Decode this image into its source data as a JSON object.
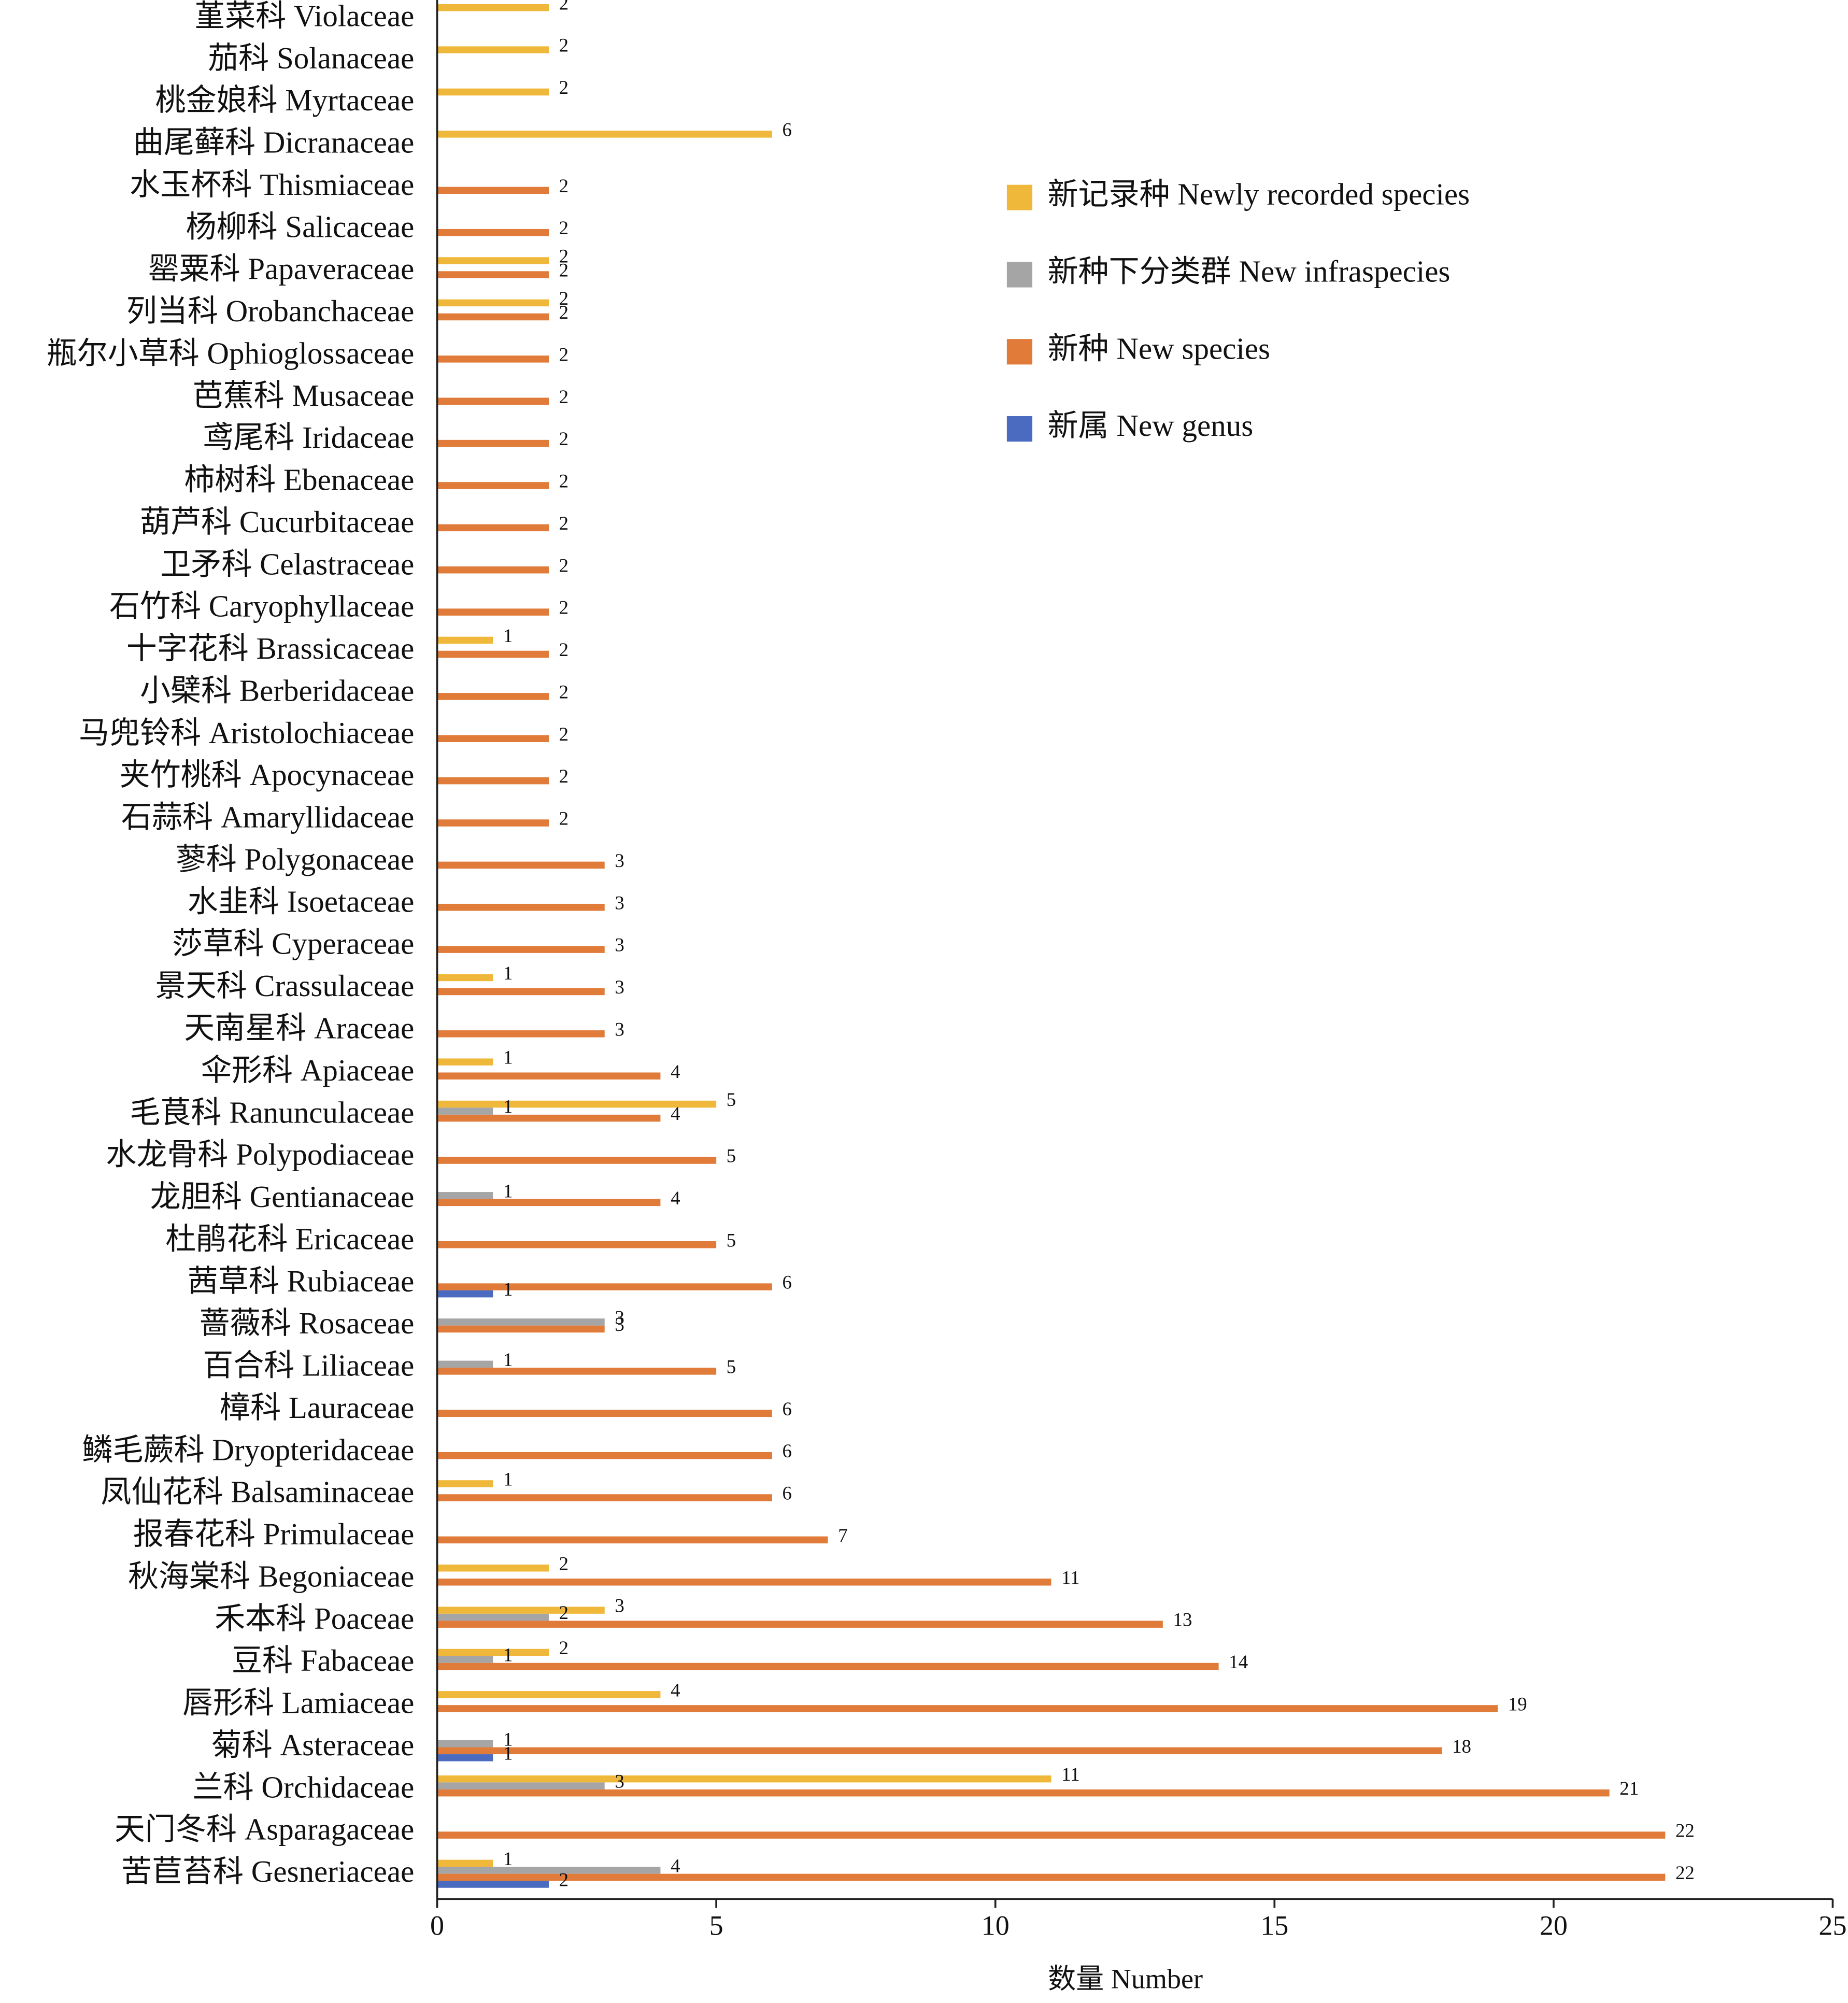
{
  "chart_data": {
    "type": "barh",
    "x_label": "数量 Number",
    "categories": [
      "堇菜科 Violaceae",
      "茄科 Solanaceae",
      "桃金娘科 Myrtaceae",
      "曲尾藓科 Dicranaceae",
      "水玉杯科 Thismiaceae",
      "杨柳科 Salicaceae",
      "罂粟科 Papaveraceae",
      "列当科 Orobanchaceae",
      "瓶尔小草科 Ophioglossaceae",
      "芭蕉科 Musaceae",
      "鸢尾科 Iridaceae",
      "柿树科 Ebenaceae",
      "葫芦科 Cucurbitaceae",
      "卫矛科 Celastraceae",
      "石竹科 Caryophyllaceae",
      "十字花科 Brassicaceae",
      "小檗科 Berberidaceae",
      "马兜铃科 Aristolochiaceae",
      "夹竹桃科 Apocynaceae",
      "石蒜科 Amaryllidaceae",
      "蓼科 Polygonaceae",
      "水韭科 Isoetaceae",
      "莎草科 Cyperaceae",
      "景天科 Crassulaceae",
      "天南星科 Araceae",
      "伞形科 Apiaceae",
      "毛茛科 Ranunculaceae",
      "水龙骨科 Polypodiaceae",
      "龙胆科 Gentianaceae",
      "杜鹃花科 Ericaceae",
      "茜草科 Rubiaceae",
      "蔷薇科 Rosaceae",
      "百合科 Liliaceae",
      "樟科 Lauraceae",
      "鳞毛蕨科 Dryopteridaceae",
      "凤仙花科 Balsaminaceae",
      "报春花科 Primulaceae",
      "秋海棠科 Begoniaceae",
      "禾本科 Poaceae",
      "豆科 Fabaceae",
      "唇形科 Lamiaceae",
      "菊科 Asteraceae",
      "兰科 Orchidaceae",
      "天门冬科 Asparagaceae",
      "苦苣苔科 Gesneriaceae"
    ],
    "series": [
      {
        "name": "新记录种 Newly recorded species",
        "color": "#f0b83a",
        "values": [
          2,
          2,
          2,
          6,
          null,
          null,
          2,
          2,
          null,
          null,
          null,
          null,
          null,
          null,
          null,
          1,
          null,
          null,
          null,
          null,
          null,
          null,
          null,
          1,
          null,
          1,
          5,
          null,
          null,
          null,
          null,
          null,
          null,
          null,
          null,
          1,
          null,
          2,
          3,
          2,
          4,
          null,
          11,
          null,
          1
        ]
      },
      {
        "name": "新种下分类群 New infraspecies",
        "color": "#a5a5a5",
        "values": [
          null,
          null,
          null,
          null,
          null,
          null,
          null,
          null,
          null,
          null,
          null,
          null,
          null,
          null,
          null,
          null,
          null,
          null,
          null,
          null,
          null,
          null,
          null,
          null,
          null,
          null,
          1,
          null,
          1,
          null,
          null,
          3,
          1,
          null,
          null,
          null,
          null,
          null,
          2,
          1,
          null,
          1,
          3,
          null,
          4
        ]
      },
      {
        "name": "新种 New species",
        "color": "#e07b39",
        "values": [
          null,
          null,
          null,
          null,
          2,
          2,
          2,
          2,
          2,
          2,
          2,
          2,
          2,
          2,
          2,
          2,
          2,
          2,
          2,
          2,
          3,
          3,
          3,
          3,
          3,
          4,
          4,
          5,
          4,
          5,
          6,
          3,
          5,
          6,
          6,
          6,
          7,
          11,
          13,
          14,
          19,
          18,
          21,
          22,
          22
        ]
      },
      {
        "name": "新属 New genus",
        "color": "#4a6bbf",
        "values": [
          null,
          null,
          null,
          null,
          null,
          null,
          null,
          null,
          null,
          null,
          null,
          null,
          null,
          null,
          null,
          null,
          null,
          null,
          null,
          null,
          null,
          null,
          null,
          null,
          null,
          null,
          null,
          null,
          null,
          null,
          1,
          null,
          null,
          null,
          null,
          null,
          null,
          null,
          null,
          null,
          null,
          1,
          null,
          null,
          2
        ]
      }
    ],
    "xlim": [
      0,
      25
    ],
    "xticks": [
      0,
      5,
      10,
      15,
      20,
      25
    ],
    "legend": "upper right"
  }
}
